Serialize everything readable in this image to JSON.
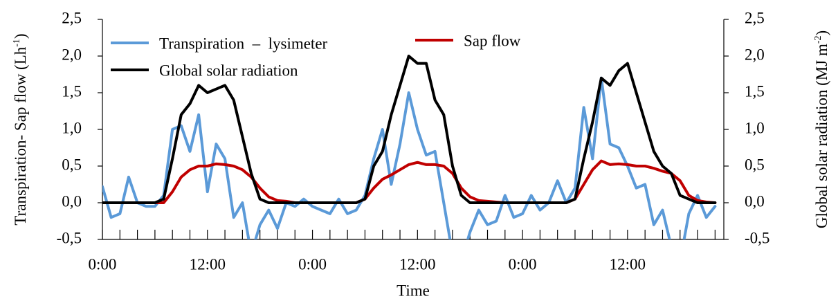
{
  "chart_data": {
    "type": "line",
    "xlabel": "Time",
    "ylabel": [
      "Transpiration- Sap flow (Lh",
      "-1",
      ")"
    ],
    "y2label": [
      "Global solar radiation (MJ m",
      "-2",
      ")"
    ],
    "x": [
      0,
      1,
      2,
      3,
      4,
      5,
      6,
      7,
      8,
      9,
      10,
      11,
      12,
      13,
      14,
      15,
      16,
      17,
      18,
      19,
      20,
      21,
      22,
      23,
      24,
      25,
      26,
      27,
      28,
      29,
      30,
      31,
      32,
      33,
      34,
      35,
      36,
      37,
      38,
      39,
      40,
      41,
      42,
      43,
      44,
      45,
      46,
      47,
      48,
      49,
      50,
      51,
      52,
      53,
      54,
      55,
      56,
      57,
      58,
      59,
      60,
      61,
      62,
      63,
      64,
      65,
      66,
      67,
      68,
      69,
      70
    ],
    "xlim": [
      0,
      71
    ],
    "xticks": [
      {
        "value": 0,
        "label": "0:00"
      },
      {
        "value": 12,
        "label": "12:00"
      },
      {
        "value": 24,
        "label": "0:00"
      },
      {
        "value": 36,
        "label": "12:00"
      },
      {
        "value": 48,
        "label": "0:00"
      },
      {
        "value": 60,
        "label": "12:00"
      }
    ],
    "xminorticks": [
      2,
      4,
      6,
      8,
      10,
      14,
      16,
      18,
      20,
      22,
      26,
      28,
      30,
      32,
      34,
      38,
      40,
      42,
      44,
      46,
      50,
      52,
      54,
      56,
      58,
      62,
      64,
      66,
      68,
      70
    ],
    "ylim": [
      -0.5,
      2.5
    ],
    "yticks": [
      {
        "value": -0.5,
        "label": "-0,5"
      },
      {
        "value": 0,
        "label": "0,0"
      },
      {
        "value": 0.5,
        "label": "0,5"
      },
      {
        "value": 1,
        "label": "1,0"
      },
      {
        "value": 1.5,
        "label": "1,5"
      },
      {
        "value": 2,
        "label": "2,0"
      },
      {
        "value": 2.5,
        "label": "2,5"
      }
    ],
    "y2lim": [
      -0.5,
      2.5
    ],
    "y2ticks": [
      {
        "value": -0.5,
        "label": "-0,5"
      },
      {
        "value": 0,
        "label": "0,0"
      },
      {
        "value": 0.5,
        "label": "0,5"
      },
      {
        "value": 1,
        "label": "1,0"
      },
      {
        "value": 1.5,
        "label": "1,5"
      },
      {
        "value": 2,
        "label": "2,0"
      },
      {
        "value": 2.5,
        "label": "2,5"
      }
    ],
    "legend": "upper left",
    "series": [
      {
        "name": "Transpiration  –  lysimeter",
        "color": "#5b9ad8",
        "values": [
          0.22,
          -0.2,
          -0.15,
          0.35,
          0.0,
          -0.05,
          -0.05,
          0.1,
          1.0,
          1.05,
          0.7,
          1.2,
          0.15,
          0.8,
          0.6,
          -0.2,
          0.0,
          -0.7,
          -0.3,
          -0.1,
          -0.35,
          0.0,
          -0.05,
          0.05,
          -0.05,
          -0.1,
          -0.15,
          0.05,
          -0.15,
          -0.1,
          0.1,
          0.6,
          1.0,
          0.25,
          0.8,
          1.5,
          1.0,
          0.65,
          0.7,
          0.0,
          -0.7,
          -0.8,
          -0.4,
          -0.1,
          -0.3,
          -0.25,
          0.1,
          -0.2,
          -0.15,
          0.1,
          -0.1,
          0.0,
          0.3,
          0.0,
          0.2,
          1.3,
          0.6,
          1.7,
          0.8,
          0.75,
          0.5,
          0.2,
          0.25,
          -0.3,
          -0.1,
          -0.6,
          -0.8,
          -0.15,
          0.1,
          -0.2,
          -0.05
        ]
      },
      {
        "name": "Sap flow",
        "color": "#c00000",
        "values": [
          0,
          0,
          0,
          0,
          0,
          0,
          0,
          0,
          0.15,
          0.35,
          0.45,
          0.5,
          0.5,
          0.53,
          0.52,
          0.5,
          0.45,
          0.35,
          0.2,
          0.08,
          0.03,
          0.02,
          0,
          0,
          0,
          0,
          0,
          0,
          0,
          0,
          0.05,
          0.2,
          0.32,
          0.38,
          0.45,
          0.52,
          0.55,
          0.52,
          0.52,
          0.5,
          0.4,
          0.2,
          0.08,
          0.03,
          0.02,
          0.01,
          0,
          0,
          0,
          0,
          0,
          0,
          0,
          0,
          0.05,
          0.25,
          0.45,
          0.57,
          0.52,
          0.53,
          0.52,
          0.5,
          0.5,
          0.47,
          0.43,
          0.4,
          0.3,
          0.1,
          0.03,
          0.01,
          0
        ]
      },
      {
        "name": "Global solar radiation",
        "color": "#000000",
        "axis": "y2",
        "values": [
          0,
          0,
          0,
          0,
          0,
          0,
          0,
          0.05,
          0.6,
          1.2,
          1.35,
          1.6,
          1.5,
          1.55,
          1.6,
          1.4,
          0.9,
          0.4,
          0.05,
          0,
          0,
          0,
          0,
          0,
          0,
          0,
          0,
          0,
          0,
          0,
          0.05,
          0.5,
          0.7,
          1.2,
          1.6,
          2.0,
          1.9,
          1.9,
          1.4,
          1.2,
          0.5,
          0.1,
          0,
          0,
          0,
          0,
          0,
          0,
          0,
          0,
          0,
          0,
          0,
          0,
          0.05,
          0.6,
          1.1,
          1.7,
          1.6,
          1.8,
          1.9,
          1.5,
          1.1,
          0.7,
          0.5,
          0.4,
          0.1,
          0.05,
          0,
          0,
          0
        ]
      }
    ]
  }
}
